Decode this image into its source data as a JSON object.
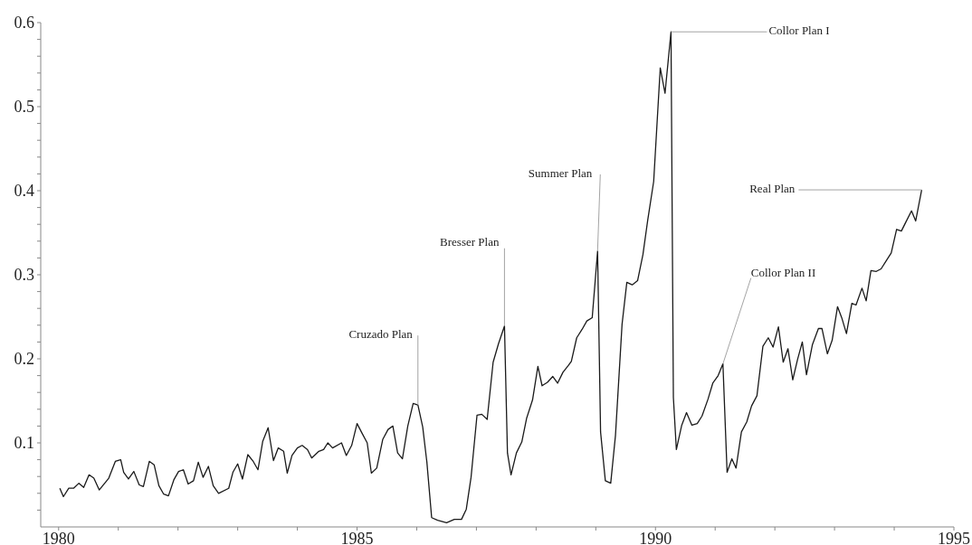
{
  "chart_data": {
    "type": "line",
    "color": "#1a1a1a",
    "x": [
      1980.02,
      1980.08,
      1980.17,
      1980.25,
      1980.34,
      1980.42,
      1980.51,
      1980.59,
      1980.68,
      1980.84,
      1980.95,
      1981.04,
      1981.09,
      1981.17,
      1981.26,
      1981.35,
      1981.42,
      1981.52,
      1981.6,
      1981.68,
      1981.76,
      1981.84,
      1981.93,
      1982.01,
      1982.09,
      1982.17,
      1982.26,
      1982.34,
      1982.42,
      1982.51,
      1982.59,
      1982.68,
      1982.85,
      1982.92,
      1983.0,
      1983.08,
      1983.17,
      1983.26,
      1983.34,
      1983.42,
      1983.51,
      1983.6,
      1983.68,
      1983.77,
      1983.83,
      1983.91,
      1984.0,
      1984.08,
      1984.17,
      1984.24,
      1984.36,
      1984.44,
      1984.51,
      1984.59,
      1984.74,
      1984.82,
      1984.91,
      1985.0,
      1985.08,
      1985.17,
      1985.24,
      1985.33,
      1985.43,
      1985.52,
      1985.6,
      1985.68,
      1985.76,
      1985.85,
      1985.94,
      1986.02,
      1986.1,
      1986.17,
      1986.25,
      1986.35,
      1986.5,
      1986.63,
      1986.75,
      1986.83,
      1986.91,
      1987.01,
      1987.09,
      1987.18,
      1987.28,
      1987.37,
      1987.47,
      1987.52,
      1987.58,
      1987.67,
      1987.76,
      1987.84,
      1987.94,
      1988.03,
      1988.1,
      1988.19,
      1988.28,
      1988.36,
      1988.45,
      1988.54,
      1988.59,
      1988.68,
      1988.77,
      1988.85,
      1988.94,
      1989.03,
      1989.08,
      1989.16,
      1989.25,
      1989.33,
      1989.44,
      1989.52,
      1989.61,
      1989.7,
      1989.79,
      1989.87,
      1989.97,
      1990.08,
      1990.16,
      1990.26,
      1990.3,
      1990.35,
      1990.44,
      1990.52,
      1990.61,
      1990.7,
      1990.78,
      1990.88,
      1990.96,
      1991.05,
      1991.13,
      1991.2,
      1991.28,
      1991.35,
      1991.44,
      1991.53,
      1991.61,
      1991.7,
      1991.8,
      1991.89,
      1991.97,
      1992.06,
      1992.14,
      1992.22,
      1992.3,
      1992.38,
      1992.46,
      1992.53,
      1992.63,
      1992.73,
      1992.79,
      1992.88,
      1992.96,
      1993.05,
      1993.12,
      1993.2,
      1993.29,
      1993.36,
      1993.46,
      1993.53,
      1993.61,
      1993.7,
      1993.78,
      1993.87,
      1993.95,
      1994.04,
      1994.12,
      1994.19,
      1994.29,
      1994.36,
      1994.46
    ],
    "values": [
      0.046,
      0.036,
      0.046,
      0.046,
      0.052,
      0.047,
      0.062,
      0.058,
      0.044,
      0.058,
      0.078,
      0.08,
      0.065,
      0.057,
      0.066,
      0.05,
      0.048,
      0.078,
      0.074,
      0.049,
      0.039,
      0.037,
      0.056,
      0.066,
      0.068,
      0.051,
      0.055,
      0.077,
      0.059,
      0.072,
      0.049,
      0.04,
      0.046,
      0.065,
      0.075,
      0.057,
      0.086,
      0.078,
      0.068,
      0.102,
      0.118,
      0.079,
      0.094,
      0.09,
      0.064,
      0.085,
      0.094,
      0.097,
      0.092,
      0.082,
      0.09,
      0.092,
      0.1,
      0.094,
      0.1,
      0.085,
      0.097,
      0.123,
      0.112,
      0.1,
      0.064,
      0.07,
      0.104,
      0.116,
      0.12,
      0.088,
      0.081,
      0.12,
      0.147,
      0.145,
      0.119,
      0.077,
      0.011,
      0.008,
      0.005,
      0.009,
      0.009,
      0.021,
      0.059,
      0.133,
      0.134,
      0.128,
      0.196,
      0.218,
      0.239,
      0.088,
      0.062,
      0.088,
      0.101,
      0.129,
      0.151,
      0.191,
      0.168,
      0.172,
      0.179,
      0.171,
      0.184,
      0.192,
      0.197,
      0.225,
      0.235,
      0.245,
      0.249,
      0.328,
      0.113,
      0.055,
      0.052,
      0.109,
      0.241,
      0.291,
      0.288,
      0.293,
      0.324,
      0.365,
      0.411,
      0.546,
      0.516,
      0.589,
      0.154,
      0.092,
      0.121,
      0.136,
      0.121,
      0.123,
      0.132,
      0.152,
      0.171,
      0.18,
      0.194,
      0.065,
      0.081,
      0.07,
      0.113,
      0.125,
      0.144,
      0.156,
      0.215,
      0.225,
      0.214,
      0.238,
      0.196,
      0.212,
      0.175,
      0.199,
      0.22,
      0.181,
      0.217,
      0.236,
      0.236,
      0.206,
      0.222,
      0.262,
      0.249,
      0.23,
      0.266,
      0.264,
      0.284,
      0.269,
      0.305,
      0.304,
      0.307,
      0.317,
      0.326,
      0.354,
      0.352,
      0.362,
      0.376,
      0.364,
      0.401
    ],
    "xlim": [
      1979.7,
      1995
    ],
    "xticks": [
      1980,
      {
        "value": 1981,
        "label": null
      },
      {
        "value": 1982,
        "label": null
      },
      {
        "value": 1983,
        "label": null
      },
      {
        "value": 1984,
        "label": null
      },
      1985,
      {
        "value": 1986,
        "label": null
      },
      {
        "value": 1987,
        "label": null
      },
      {
        "value": 1988,
        "label": null
      },
      {
        "value": 1989,
        "label": null
      },
      1990,
      {
        "value": 1991,
        "label": null
      },
      {
        "value": 1992,
        "label": null
      },
      {
        "value": 1993,
        "label": null
      },
      {
        "value": 1994,
        "label": null
      },
      1995
    ],
    "ylim": [
      0,
      0.6
    ],
    "yticks": [
      {
        "value": 0.02,
        "label": null
      },
      {
        "value": 0.04,
        "label": null
      },
      {
        "value": 0.06,
        "label": null
      },
      {
        "value": 0.08,
        "label": null
      },
      0.1,
      {
        "value": 0.12,
        "label": null
      },
      {
        "value": 0.14,
        "label": null
      },
      {
        "value": 0.16,
        "label": null
      },
      {
        "value": 0.18,
        "label": null
      },
      0.2,
      {
        "value": 0.22,
        "label": null
      },
      {
        "value": 0.24,
        "label": null
      },
      {
        "value": 0.26,
        "label": null
      },
      {
        "value": 0.28,
        "label": null
      },
      0.3,
      {
        "value": 0.32,
        "label": null
      },
      {
        "value": 0.34,
        "label": null
      },
      {
        "value": 0.36,
        "label": null
      },
      {
        "value": 0.38,
        "label": null
      },
      0.4,
      {
        "value": 0.42,
        "label": null
      },
      {
        "value": 0.44,
        "label": null
      },
      {
        "value": 0.46,
        "label": null
      },
      {
        "value": 0.48,
        "label": null
      },
      0.5,
      {
        "value": 0.52,
        "label": null
      },
      {
        "value": 0.54,
        "label": null
      },
      {
        "value": 0.56,
        "label": null
      },
      {
        "value": 0.58,
        "label": null
      },
      0.6
    ],
    "annotations": [
      {
        "text": "Cruzado Plan",
        "x": 1986.02,
        "y": 0.145
      },
      {
        "text": "Bresser Plan",
        "x": 1987.47,
        "y": 0.239
      },
      {
        "text": "Summer Plan",
        "x": 1989.03,
        "y": 0.328
      },
      {
        "text": "Collor Plan I",
        "x": 1990.26,
        "y": 0.589
      },
      {
        "text": "Collor Plan II",
        "x": 1991.13,
        "y": 0.194
      },
      {
        "text": "Real Plan",
        "x": 1994.46,
        "y": 0.401
      }
    ]
  }
}
